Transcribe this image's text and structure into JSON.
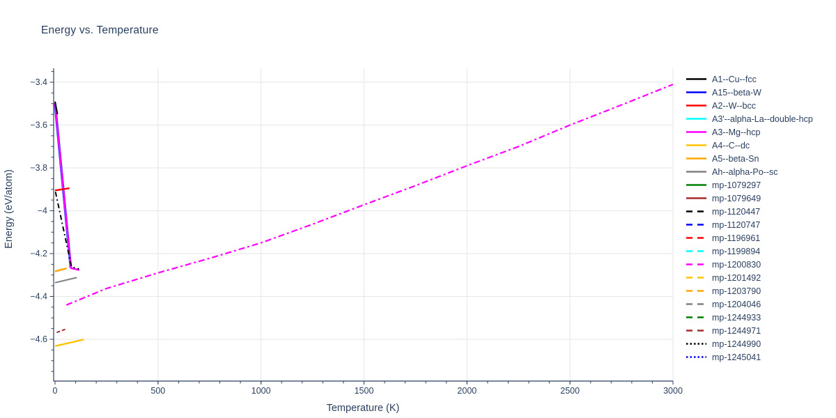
{
  "chart_data": {
    "type": "line",
    "title": "Energy vs. Temperature",
    "xlabel": "Temperature (K)",
    "ylabel": "Energy (eV/atom)",
    "xlim": [
      0,
      3010
    ],
    "ylim": [
      -4.8,
      -3.33
    ],
    "grid": true,
    "legend_position": "right",
    "x_ticks": [
      {
        "v": 0,
        "label": "0"
      },
      {
        "v": 500,
        "label": "500"
      },
      {
        "v": 1000,
        "label": "1000"
      },
      {
        "v": 1500,
        "label": "1500"
      },
      {
        "v": 2000,
        "label": "2000"
      },
      {
        "v": 2500,
        "label": "2500"
      },
      {
        "v": 3000,
        "label": "3000"
      }
    ],
    "x_minor_tick_step": 100,
    "y_ticks": [
      {
        "v": -3.4,
        "label": "−3.4"
      },
      {
        "v": -3.6,
        "label": "−3.6"
      },
      {
        "v": -3.8,
        "label": "−3.8"
      },
      {
        "v": -4.0,
        "label": "−4"
      },
      {
        "v": -4.2,
        "label": "−4.2"
      },
      {
        "v": -4.4,
        "label": "−4.4"
      },
      {
        "v": -4.6,
        "label": "−4.6"
      }
    ],
    "y_minor_tick_step": 0.05,
    "styles": {
      "text_color": "#2a3f5f",
      "axis_color": "#2a3f5f",
      "grid_color": "#e6e6e6",
      "background": "#ffffff"
    },
    "series": [
      {
        "name": "A1--Cu--fcc",
        "color": "#000000",
        "dash": "solid",
        "width": 2,
        "points": [
          [
            0,
            -3.49
          ],
          [
            12,
            -3.55
          ]
        ]
      },
      {
        "name": "A15--beta-W",
        "color": "#0000ff",
        "dash": "solid",
        "width": 3.5,
        "points": [
          [
            0,
            -3.5
          ],
          [
            76,
            -4.265
          ]
        ]
      },
      {
        "name": "A2--W--bcc",
        "color": "#ff0000",
        "dash": "solid",
        "width": 2.5,
        "points": [
          [
            0,
            -3.905
          ],
          [
            70,
            -3.895
          ]
        ]
      },
      {
        "name": "A3'--alpha-La--double-hcp",
        "color": "#00ffff",
        "dash": "solid",
        "width": 2.5,
        "points": [
          [
            0,
            -3.5
          ],
          [
            76,
            -4.265
          ]
        ]
      },
      {
        "name": "A3--Mg--hcp",
        "color": "#ff00ff",
        "dash": "solid",
        "width": 2.5,
        "points": [
          [
            0,
            -3.498
          ],
          [
            77,
            -4.268
          ],
          [
            118,
            -4.277
          ]
        ]
      },
      {
        "name": "A4--C--dc",
        "color": "#ffc400",
        "dash": "solid",
        "width": 2.5,
        "points": [
          [
            0,
            -4.632
          ],
          [
            140,
            -4.601
          ]
        ]
      },
      {
        "name": "A5--beta-Sn",
        "color": "#ffa500",
        "dash": "solid",
        "width": 2.5,
        "points": [
          [
            0,
            -4.283
          ],
          [
            56,
            -4.269
          ]
        ]
      },
      {
        "name": "Ah--alpha-Po--sc",
        "color": "#808080",
        "dash": "solid",
        "width": 2,
        "points": [
          [
            0,
            -4.336
          ],
          [
            106,
            -4.312
          ]
        ]
      },
      {
        "name": "mp-1079297",
        "color": "#008000",
        "dash": "solid",
        "width": 2,
        "points": []
      },
      {
        "name": "mp-1079649",
        "color": "#a52a2a",
        "dash": "solid",
        "width": 2,
        "points": []
      },
      {
        "name": "mp-1120447",
        "color": "#000000",
        "dash": "dashdot",
        "width": 2,
        "dasharray": "7 4 2 4",
        "points": [
          [
            2,
            -3.912
          ],
          [
            80,
            -4.262
          ],
          [
            116,
            -4.272
          ]
        ]
      },
      {
        "name": "mp-1120747",
        "color": "#0000ff",
        "dash": "dash",
        "width": 2,
        "points": []
      },
      {
        "name": "mp-1196961",
        "color": "#ff0000",
        "dash": "dash",
        "width": 2,
        "points": []
      },
      {
        "name": "mp-1199894",
        "color": "#00ffff",
        "dash": "dash",
        "width": 2,
        "points": []
      },
      {
        "name": "mp-1200830",
        "color": "#ff00ff",
        "dash": "dashdot",
        "width": 2.2,
        "dasharray": "9 4 3 4",
        "points": [
          [
            55,
            -4.44
          ],
          [
            250,
            -4.363
          ],
          [
            500,
            -4.29
          ],
          [
            750,
            -4.222
          ],
          [
            1000,
            -4.15
          ],
          [
            1250,
            -4.063
          ],
          [
            1500,
            -3.972
          ],
          [
            1750,
            -3.883
          ],
          [
            2000,
            -3.79
          ],
          [
            2250,
            -3.7
          ],
          [
            2500,
            -3.6
          ],
          [
            2750,
            -3.506
          ],
          [
            3000,
            -3.41
          ]
        ]
      },
      {
        "name": "mp-1201492",
        "color": "#ffc400",
        "dash": "dash",
        "width": 2,
        "points": []
      },
      {
        "name": "mp-1203790",
        "color": "#ffa500",
        "dash": "dash",
        "width": 2,
        "points": []
      },
      {
        "name": "mp-1204046",
        "color": "#808080",
        "dash": "dash",
        "width": 2,
        "points": []
      },
      {
        "name": "mp-1244933",
        "color": "#008000",
        "dash": "dash",
        "width": 2,
        "points": []
      },
      {
        "name": "mp-1244971",
        "color": "#a52a2a",
        "dash": "dash",
        "width": 2,
        "dasharray": "5 3",
        "points": [
          [
            8,
            -4.568
          ],
          [
            56,
            -4.551
          ]
        ]
      },
      {
        "name": "mp-1244990",
        "color": "#000000",
        "dash": "dot",
        "width": 2,
        "points": []
      },
      {
        "name": "mp-1245041",
        "color": "#0000ff",
        "dash": "dot",
        "width": 2,
        "points": []
      }
    ]
  }
}
